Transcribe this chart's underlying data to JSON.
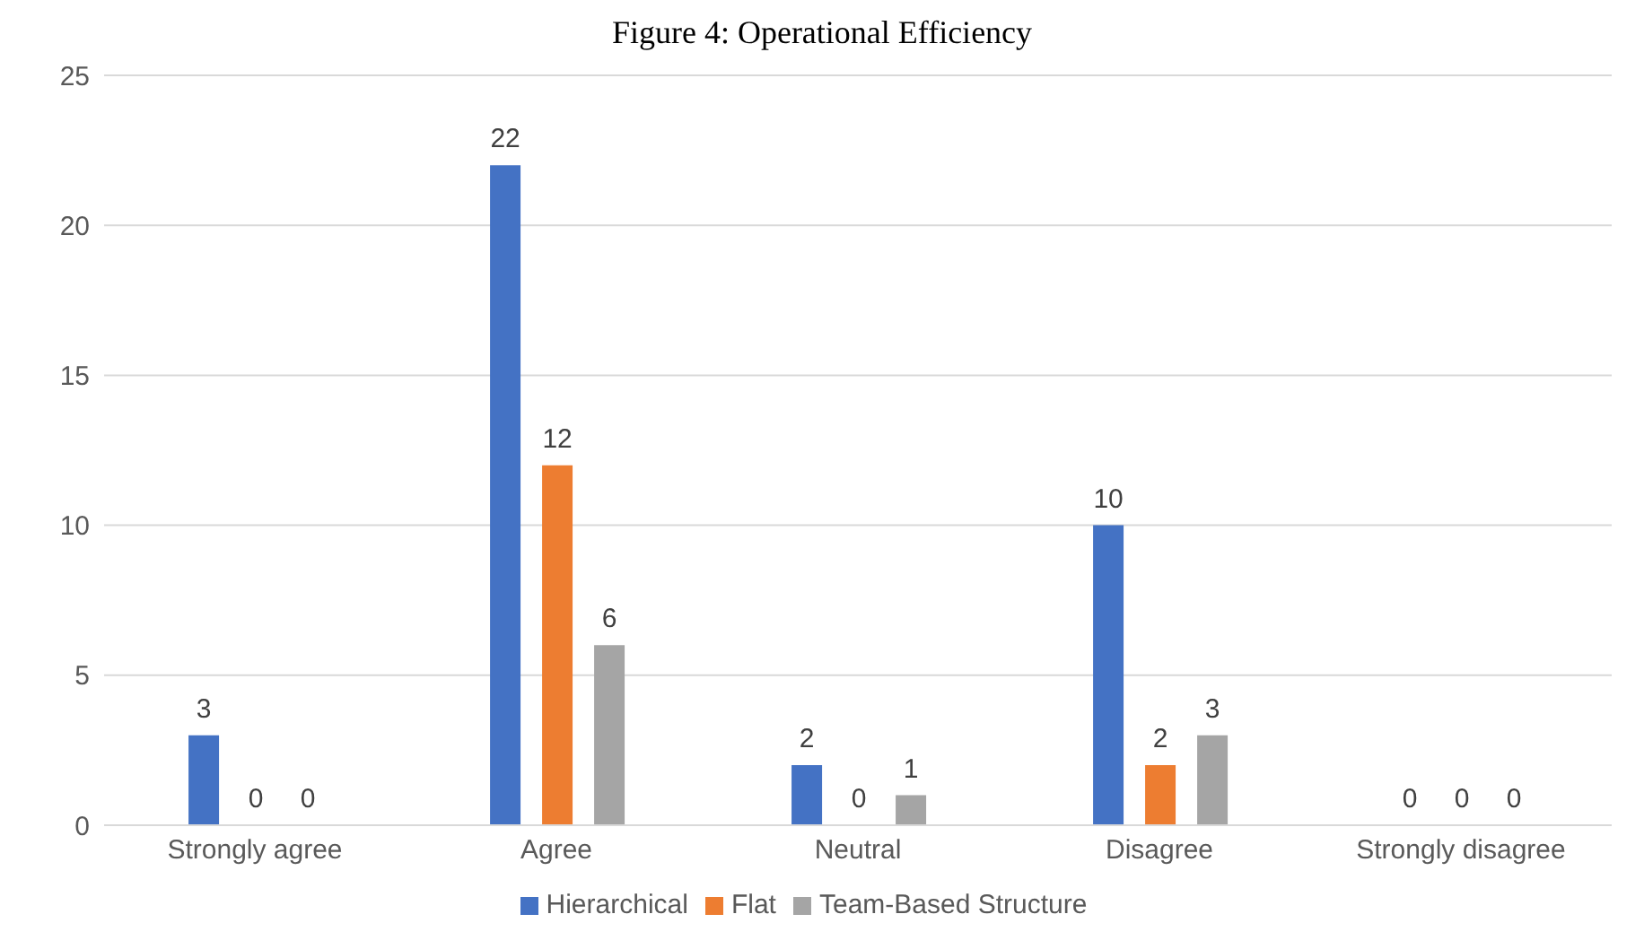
{
  "chart_data": {
    "type": "bar",
    "title": "Figure 4: Operational Efficiency",
    "categories": [
      "Strongly agree",
      "Agree",
      "Neutral",
      "Disagree",
      "Strongly disagree"
    ],
    "series": [
      {
        "name": "Hierarchical",
        "color": "#4472c4",
        "values": [
          3,
          22,
          2,
          10,
          0
        ]
      },
      {
        "name": "Flat",
        "color": "#ed7d31",
        "values": [
          0,
          12,
          0,
          2,
          0
        ]
      },
      {
        "name": "Team-Based Structure",
        "color": "#a5a5a5",
        "values": [
          0,
          6,
          1,
          3,
          0
        ]
      }
    ],
    "ylim": [
      0,
      25
    ],
    "yticks": [
      0,
      5,
      10,
      15,
      20,
      25
    ],
    "grid": "y",
    "legend": "bottom",
    "data_labels": true
  }
}
